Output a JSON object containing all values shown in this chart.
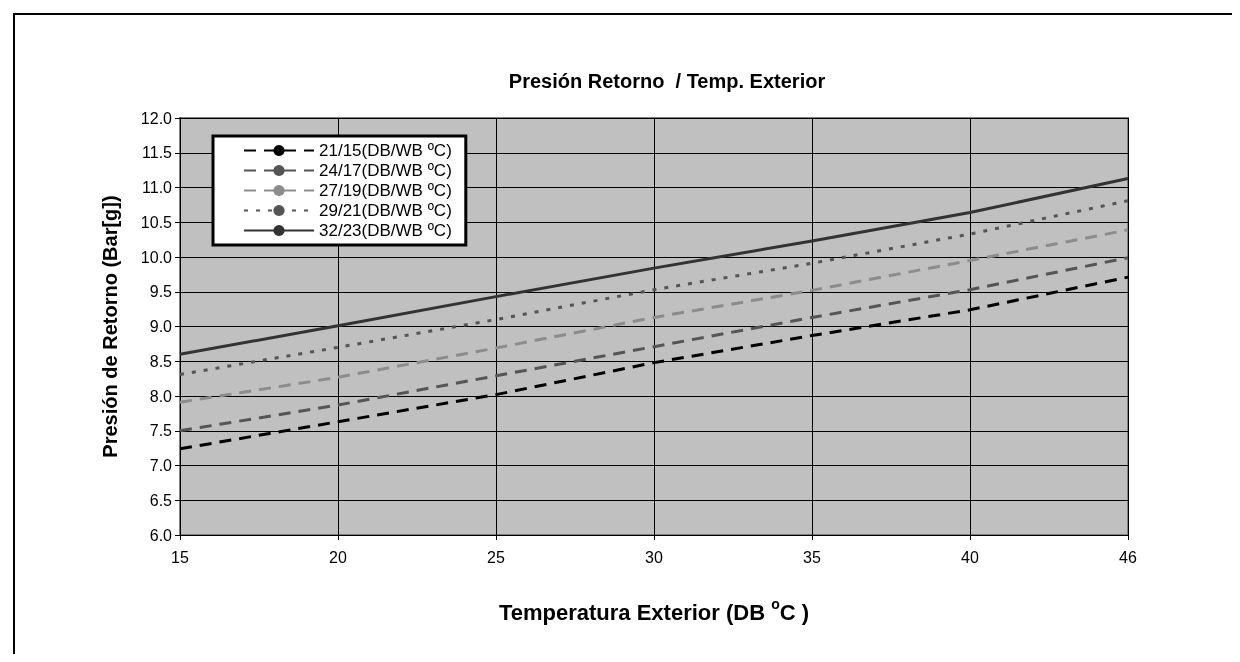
{
  "chart_data": {
    "type": "line",
    "title": "Presión Retorno  / Temp. Exterior",
    "xlabel": "Temperatura Exterior (DB $^{o}$C )",
    "ylabel": "Presión de Retorno (Bar[g])",
    "categories": [
      "15",
      "20",
      "25",
      "30",
      "35",
      "40",
      "46"
    ],
    "series": [
      {
        "name": "21/15(DB/WB ºC)",
        "color": "#000000",
        "line_style": "dashed",
        "values": [
          7.24,
          7.63,
          8.02,
          8.48,
          8.87,
          9.24,
          9.71
        ]
      },
      {
        "name": "24/17(DB/WB ºC)",
        "color": "#555555",
        "line_style": "dashed",
        "values": [
          7.5,
          7.87,
          8.29,
          8.71,
          9.13,
          9.53,
          9.99
        ]
      },
      {
        "name": "27/19(DB/WB ºC)",
        "color": "#8c8c8c",
        "line_style": "dashed",
        "values": [
          7.91,
          8.27,
          8.69,
          9.13,
          9.52,
          9.95,
          10.39
        ]
      },
      {
        "name": "29/21(DB/WB ºC)",
        "color": "#555555",
        "line_style": "dotted",
        "values": [
          8.31,
          8.7,
          9.1,
          9.53,
          9.91,
          10.33,
          10.81
        ]
      },
      {
        "name": "32/23(DB/WB ºC)",
        "color": "#333333",
        "line_style": "solid",
        "values": [
          8.6,
          9.01,
          9.43,
          9.84,
          10.23,
          10.64,
          11.13
        ]
      }
    ],
    "ylim": [
      6,
      12
    ],
    "yticks": [
      {
        "value": 6,
        "label": "6.0"
      },
      {
        "value": 6.5,
        "label": "6.5"
      },
      {
        "value": 7,
        "label": "7.0"
      },
      {
        "value": 7.5,
        "label": "7.5"
      },
      {
        "value": 8,
        "label": "8.0"
      },
      {
        "value": 8.5,
        "label": "8.5"
      },
      {
        "value": 9,
        "label": "9.0"
      },
      {
        "value": 9.5,
        "label": "9.5"
      },
      {
        "value": 10,
        "label": "10.0"
      },
      {
        "value": 10.5,
        "label": "10.5"
      },
      {
        "value": 11,
        "label": "11.0"
      },
      {
        "value": 11.5,
        "label": "11.5"
      },
      {
        "value": 12,
        "label": "12.0"
      }
    ],
    "grid": true,
    "legend": "top left",
    "marker": "none"
  }
}
